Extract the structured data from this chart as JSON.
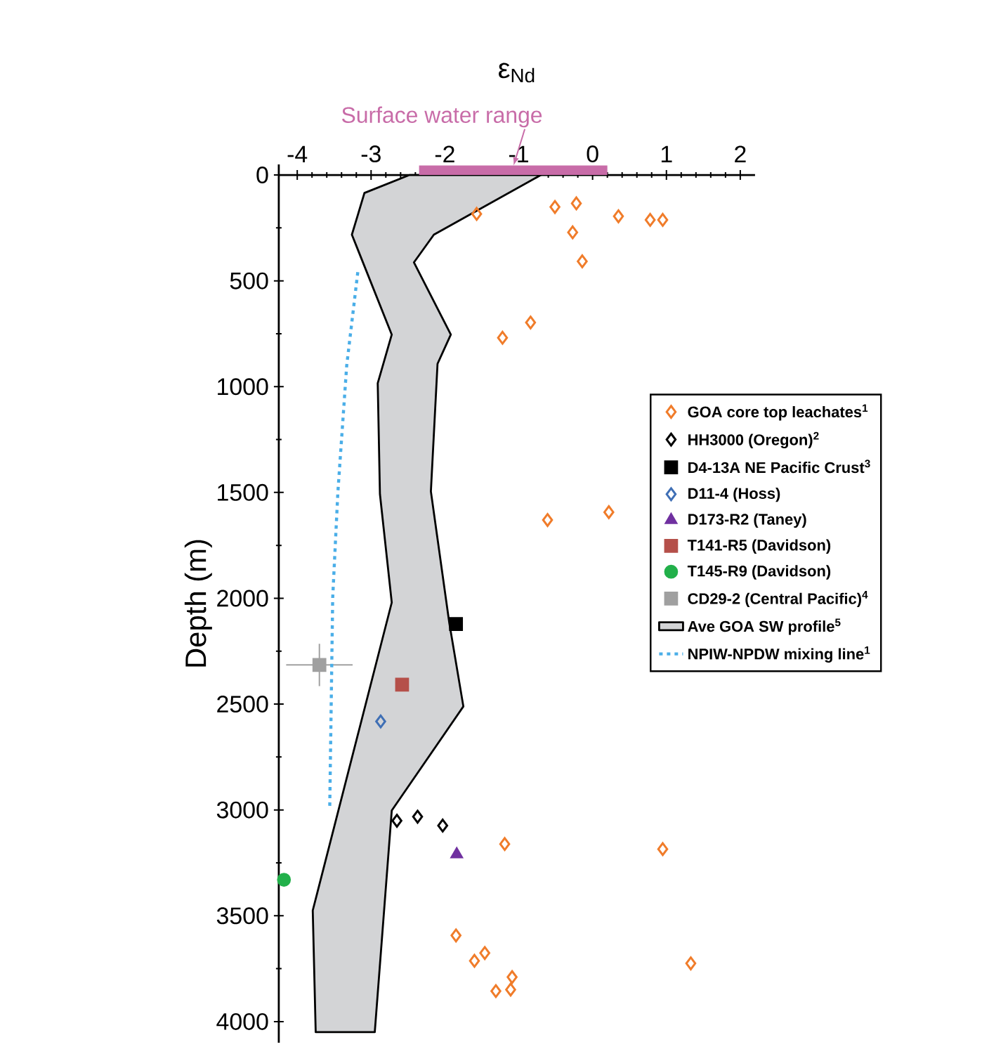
{
  "chart_data": {
    "type": "scatter",
    "xlabel": "ε$_{Nd}$",
    "ylabel": "Depth (m)",
    "xlim": [
      -4.25,
      2.2
    ],
    "ylim": [
      4100,
      -50
    ],
    "xticks": [
      -4,
      -3,
      -2,
      -1,
      0,
      1,
      2
    ],
    "yticks": [
      0,
      500,
      1000,
      1500,
      2000,
      2500,
      3000,
      3500,
      4000
    ],
    "legend": "right",
    "grid": false,
    "annotations": [
      {
        "text": "Surface water range",
        "x": -1.07,
        "y": -45
      }
    ],
    "series": [
      {
        "name": "GOA core top leachates$^{1}$",
        "color": "#f07c2a",
        "marker": "diamond",
        "x": [
          -1.57,
          -0.51,
          -0.22,
          0.35,
          0.78,
          0.95,
          -0.27,
          -0.14,
          -0.84,
          -1.22,
          -0.61,
          0.22,
          -1.19,
          0.95,
          -1.85,
          -1.46,
          -1.6,
          -1.09,
          -1.31,
          -1.11,
          1.33
        ],
        "values": [
          184,
          151,
          134,
          195,
          212,
          212,
          271,
          408,
          697,
          769,
          1630,
          1593,
          3161,
          3185,
          3593,
          3676,
          3713,
          3790,
          3856,
          3849,
          3725
        ]
      },
      {
        "name": "HH3000 (Oregon)$^{2}$",
        "color": "#000000",
        "marker": "diamond",
        "x": [
          -2.65,
          -2.37,
          -2.03
        ],
        "values": [
          3051,
          3032,
          3074
        ]
      },
      {
        "name": "D4-13A NE Pacific Crust$^{3}$",
        "color": "#000000",
        "marker": "square",
        "x": [
          -1.85
        ],
        "values": [
          2122
        ]
      },
      {
        "name": "D11-4 (Hoss)",
        "color": "#3f6fb5",
        "marker": "diamond",
        "x": [
          -2.87
        ],
        "values": [
          2582
        ]
      },
      {
        "name": "D173-R2 (Taney)",
        "color": "#7030a0",
        "marker": "triangle",
        "x": [
          -1.84
        ],
        "values": [
          3210
        ]
      },
      {
        "name": "T141-R5 (Davidson)",
        "color": "#b5504a",
        "marker": "square",
        "x": [
          -2.58
        ],
        "values": [
          2408
        ]
      },
      {
        "name": "T145-R9 (Davidson)",
        "color": "#22b04a",
        "marker": "circle",
        "x": [
          -4.18
        ],
        "values": [
          3330
        ]
      },
      {
        "name": "CD29-2 (Central Pacific)$^{4}$",
        "color": "#a0a0a0",
        "marker": "square",
        "x": [
          -3.7
        ],
        "values": [
          2315
        ],
        "errors": [
          100
        ],
        "xerrors": [
          0.45
        ]
      },
      {
        "name": "Ave GOA SW profile$^{5}$",
        "type": "area",
        "color": "#d3d4d6",
        "x": [
          -2.48,
          -3.09,
          -3.26,
          -2.72,
          -2.91,
          -2.88,
          -2.72,
          -3.79,
          -3.75,
          -2.95,
          -2.72,
          -1.75,
          -1.94,
          -2.19,
          -2.1,
          -1.92,
          -2.42,
          -2.15,
          -0.7
        ],
        "values": [
          0,
          85,
          282,
          754,
          984,
          1508,
          2020,
          3475,
          4050,
          4050,
          3003,
          2511,
          2118,
          1495,
          892,
          754,
          413,
          282,
          0
        ]
      },
      {
        "type": "area",
        "color": "#c86ca8",
        "x": [
          -2.35,
          0.2
        ],
        "values": [
          -45,
          -45
        ]
      },
      {
        "name": "NPIW-NPDW mixing line$^{1}$",
        "type": "line",
        "line_style": "dotted",
        "marker": "none",
        "color": "#4aaee8",
        "x": [
          -3.18,
          -3.33,
          -3.45,
          -3.52,
          -3.54,
          -3.56
        ],
        "values": [
          459,
          900,
          1500,
          2000,
          2500,
          2990
        ]
      }
    ]
  }
}
